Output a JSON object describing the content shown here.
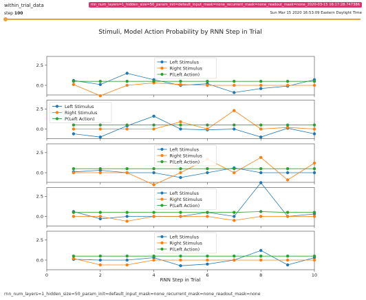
{
  "header": {
    "run_name": "within_trial_data",
    "step_label": "step",
    "step_value": "100",
    "run_tag": "rnn_num_layers=1_hidden_size=50_param_init=default_input_mask=none_recurrent_mask=none_readout_mask=none_2020-03-15 16:17:28.747386",
    "timestamp": "Sun Mar 15 2020 16:53:09 Eastern Daylight Time"
  },
  "caption": "rnn_num_layers=1_hidden_size=50_param_init=default_input_mask=none_recurrent_mask=none_readout_mask=none",
  "colors": {
    "left": "#1f77b4",
    "right": "#ff7f0e",
    "pleft": "#2ca02c",
    "slider": "#e8a23c",
    "tag": "#d9336b"
  },
  "chart_data": {
    "type": "line",
    "title": "Stimuli, Model Action Probability by RNN Step in Trial",
    "xlabel": "RNN Step in Trial",
    "xlim": [
      0,
      10
    ],
    "xticks": [
      "0",
      "2",
      "4",
      "6",
      "8",
      "10"
    ],
    "ylim": [
      -1.2,
      3.6
    ],
    "yticks": [
      "0.0",
      "2.5"
    ],
    "x": [
      1,
      2,
      3,
      4,
      5,
      6,
      7,
      8,
      9,
      10
    ],
    "legend_entries": [
      "Left Stimulus",
      "Right Stimulus",
      "P(Left Action)"
    ],
    "panels": [
      {
        "legend_position": "upper-center",
        "series": [
          {
            "name": "Left Stimulus",
            "values": [
              0.6,
              0.1,
              1.5,
              0.7,
              0.0,
              0.2,
              -0.9,
              -0.4,
              -0.1,
              0.7
            ]
          },
          {
            "name": "Right Stimulus",
            "values": [
              0.1,
              -1.3,
              0.0,
              0.3,
              0.1,
              0.0,
              0.0,
              0.0,
              0.0,
              0.0
            ]
          },
          {
            "name": "P(Left Action)",
            "values": [
              0.5,
              0.5,
              0.5,
              0.5,
              0.5,
              0.5,
              0.5,
              0.5,
              0.5,
              0.5
            ]
          }
        ]
      },
      {
        "legend_position": "upper-left",
        "series": [
          {
            "name": "Left Stimulus",
            "values": [
              -0.6,
              -1.0,
              0.4,
              1.6,
              0.0,
              -0.1,
              0.0,
              -1.0,
              0.1,
              -0.6
            ]
          },
          {
            "name": "Right Stimulus",
            "values": [
              0.0,
              0.0,
              0.0,
              0.0,
              0.9,
              0.0,
              2.3,
              0.0,
              0.2,
              0.0
            ]
          },
          {
            "name": "P(Left Action)",
            "values": [
              0.5,
              0.5,
              0.5,
              0.5,
              0.5,
              0.5,
              0.5,
              0.5,
              0.5,
              0.5
            ]
          }
        ]
      },
      {
        "legend_position": "upper-center",
        "series": [
          {
            "name": "Left Stimulus",
            "values": [
              0.1,
              0.3,
              0.0,
              0.0,
              -0.6,
              0.0,
              0.6,
              0.0,
              0.0,
              0.0
            ]
          },
          {
            "name": "Right Stimulus",
            "values": [
              0.0,
              0.0,
              0.0,
              -1.5,
              0.0,
              1.7,
              0.0,
              1.9,
              -0.9,
              1.2
            ]
          },
          {
            "name": "P(Left Action)",
            "values": [
              0.5,
              0.5,
              0.5,
              0.5,
              0.5,
              0.5,
              0.5,
              0.5,
              0.5,
              0.5
            ]
          }
        ]
      },
      {
        "legend_position": "upper-center",
        "series": [
          {
            "name": "Left Stimulus",
            "values": [
              0.6,
              -0.3,
              0.0,
              0.0,
              0.0,
              0.5,
              0.0,
              4.2,
              0.0,
              0.3
            ]
          },
          {
            "name": "Right Stimulus",
            "values": [
              0.0,
              0.0,
              -0.6,
              0.0,
              0.0,
              0.0,
              -0.5,
              0.0,
              0.0,
              0.0
            ]
          },
          {
            "name": "P(Left Action)",
            "values": [
              0.5,
              0.5,
              0.5,
              0.5,
              0.5,
              0.5,
              0.5,
              0.6,
              0.5,
              0.5
            ]
          }
        ]
      },
      {
        "legend_position": "upper-center",
        "series": [
          {
            "name": "Left Stimulus",
            "values": [
              0.1,
              0.0,
              0.0,
              0.3,
              -0.7,
              -0.5,
              0.0,
              1.2,
              -0.6,
              0.3
            ]
          },
          {
            "name": "Right Stimulus",
            "values": [
              0.2,
              -0.6,
              -0.6,
              0.0,
              0.0,
              0.0,
              0.0,
              0.0,
              0.0,
              0.0
            ]
          },
          {
            "name": "P(Left Action)",
            "values": [
              0.5,
              0.5,
              0.5,
              0.5,
              0.5,
              0.5,
              0.5,
              0.5,
              0.5,
              0.5
            ]
          }
        ]
      }
    ]
  }
}
